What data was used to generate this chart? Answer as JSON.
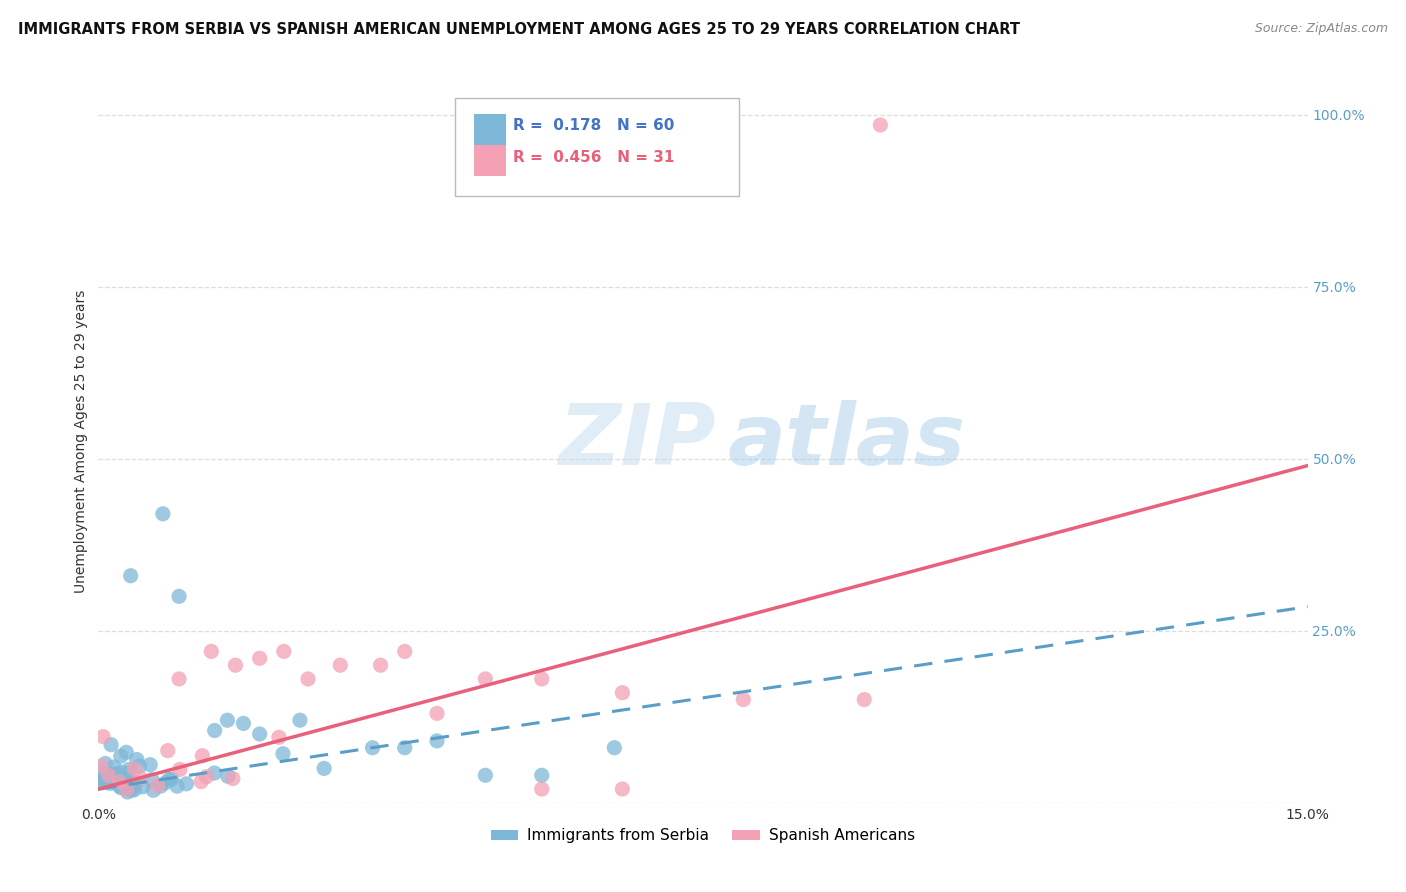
{
  "title": "IMMIGRANTS FROM SERBIA VS SPANISH AMERICAN UNEMPLOYMENT AMONG AGES 25 TO 29 YEARS CORRELATION CHART",
  "source": "Source: ZipAtlas.com",
  "ylabel": "Unemployment Among Ages 25 to 29 years",
  "xlim": [
    0.0,
    0.15
  ],
  "ylim": [
    0.0,
    1.05
  ],
  "series1_color": "#7eb8d8",
  "series2_color": "#f4a0b5",
  "series1_trend_color": "#5a9ec8",
  "series2_trend_color": "#e8607a",
  "series1_label": "Immigrants from Serbia",
  "series2_label": "Spanish Americans",
  "R1": 0.178,
  "N1": 60,
  "R2": 0.456,
  "N2": 31,
  "watermark_zip": "ZIP",
  "watermark_atlas": "atlas",
  "background_color": "#ffffff",
  "grid_color": "#dddddd",
  "right_tick_color": "#5a9ec8",
  "title_fontsize": 10.5,
  "axis_label_fontsize": 10
}
